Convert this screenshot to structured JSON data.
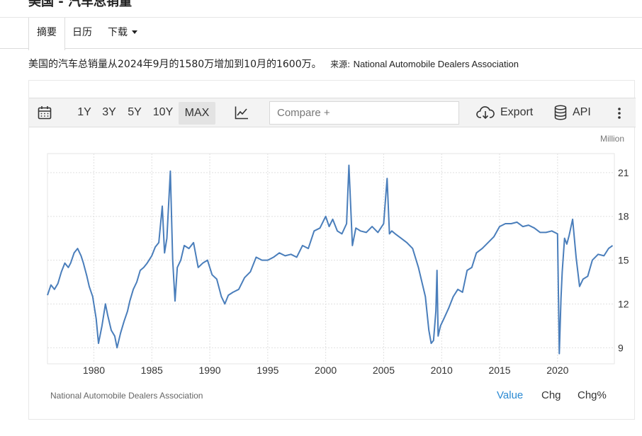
{
  "page": {
    "title": "美国 - 汽车总销量"
  },
  "tabs": {
    "summary": "摘要",
    "calendar": "日历",
    "download": "下载"
  },
  "summary": {
    "text": "美国的汽车总销量从2024年9月的1580万增加到10月的1600万。",
    "source_label": "来源:",
    "source_name": "National Automobile Dealers Association"
  },
  "toolbar": {
    "ranges": [
      "1Y",
      "3Y",
      "5Y",
      "10Y",
      "MAX"
    ],
    "active_range": "MAX",
    "compare_placeholder": "Compare +",
    "export_label": "Export",
    "api_label": "API"
  },
  "footer": {
    "source": "National Automobile Dealers Association",
    "views": [
      "Value",
      "Chg",
      "Chg%"
    ],
    "active_view": "Value"
  },
  "colors": {
    "line": "#4a7ebb",
    "active_view": "#2b8ad3"
  },
  "chart_data": {
    "type": "line",
    "unit": "Million",
    "x_ticks": [
      1980,
      1985,
      1990,
      1995,
      2000,
      2005,
      2010,
      2015,
      2020
    ],
    "y_ticks": [
      9,
      12,
      15,
      18,
      21
    ],
    "xlim": [
      1976,
      2024.9
    ],
    "ylim": [
      7.9,
      22.3
    ],
    "grid": true,
    "series": [
      {
        "x": [
          1976.0,
          1976.3,
          1976.6,
          1976.9,
          1977.2,
          1977.5,
          1977.8,
          1978.0,
          1978.3,
          1978.6,
          1978.9,
          1979.1,
          1979.4,
          1979.6,
          1979.9,
          1980.2,
          1980.4,
          1980.7,
          1981.0,
          1981.2,
          1981.5,
          1981.8,
          1982.0,
          1982.3,
          1982.6,
          1982.9,
          1983.1,
          1983.4,
          1983.7,
          1984.0,
          1984.3,
          1984.6,
          1985.0,
          1985.3,
          1985.6,
          1985.9,
          1986.1,
          1986.3,
          1986.6,
          1986.8,
          1987.0,
          1987.2,
          1987.5,
          1987.8,
          1988.2,
          1988.6,
          1989.0,
          1989.4,
          1989.8,
          1990.2,
          1990.6,
          1991.0,
          1991.3,
          1991.6,
          1992.0,
          1992.5,
          1993.0,
          1993.5,
          1994.0,
          1994.5,
          1995.0,
          1995.5,
          1996.0,
          1996.5,
          1997.0,
          1997.5,
          1998.0,
          1998.5,
          1999.0,
          1999.5,
          2000.0,
          2000.3,
          2000.6,
          2001.0,
          2001.4,
          2001.8,
          2002.0,
          2002.3,
          2002.6,
          2003.0,
          2003.5,
          2004.0,
          2004.5,
          2005.0,
          2005.3,
          2005.5,
          2005.7,
          2006.0,
          2006.5,
          2007.0,
          2007.5,
          2008.0,
          2008.3,
          2008.6,
          2008.9,
          2009.1,
          2009.3,
          2009.5,
          2009.6,
          2009.7,
          2009.9,
          2010.2,
          2010.6,
          2011.0,
          2011.4,
          2011.8,
          2012.2,
          2012.6,
          2013.0,
          2013.5,
          2014.0,
          2014.5,
          2015.0,
          2015.5,
          2016.0,
          2016.5,
          2017.0,
          2017.5,
          2018.0,
          2018.5,
          2019.0,
          2019.5,
          2020.0,
          2020.15,
          2020.3,
          2020.4,
          2020.6,
          2020.8,
          2021.0,
          2021.3,
          2021.6,
          2021.9,
          2022.2,
          2022.6,
          2023.0,
          2023.5,
          2024.0,
          2024.4,
          2024.75
        ],
        "values": [
          12.6,
          13.3,
          13.0,
          13.4,
          14.2,
          14.8,
          14.5,
          14.8,
          15.5,
          15.8,
          15.3,
          14.8,
          13.9,
          13.2,
          12.5,
          11.0,
          9.3,
          10.5,
          12.0,
          11.2,
          10.2,
          9.8,
          9.0,
          10.0,
          10.8,
          11.5,
          12.2,
          13.0,
          13.5,
          14.3,
          14.5,
          14.8,
          15.3,
          15.9,
          16.2,
          18.7,
          15.5,
          16.5,
          21.1,
          15.0,
          12.2,
          14.5,
          15.0,
          16.0,
          15.8,
          16.2,
          14.5,
          14.8,
          15.0,
          14.0,
          13.7,
          12.5,
          12.0,
          12.6,
          12.8,
          13.0,
          13.8,
          14.2,
          15.2,
          15.0,
          15.0,
          15.2,
          15.5,
          15.3,
          15.4,
          15.2,
          16.0,
          15.8,
          17.0,
          17.2,
          18.0,
          17.3,
          17.8,
          17.0,
          16.8,
          17.5,
          21.5,
          16.0,
          17.2,
          17.0,
          16.9,
          17.3,
          16.9,
          17.5,
          20.6,
          16.8,
          17.0,
          16.8,
          16.5,
          16.2,
          15.8,
          14.5,
          13.5,
          12.5,
          10.2,
          9.3,
          9.5,
          11.5,
          14.3,
          9.8,
          10.5,
          11.0,
          11.7,
          12.5,
          13.0,
          12.8,
          14.3,
          14.5,
          15.5,
          15.8,
          16.2,
          16.6,
          17.3,
          17.5,
          17.5,
          17.6,
          17.3,
          17.4,
          17.2,
          16.9,
          16.9,
          17.0,
          16.8,
          8.6,
          12.4,
          14.2,
          16.5,
          16.1,
          16.7,
          17.8,
          15.2,
          13.2,
          13.7,
          13.9,
          15.0,
          15.4,
          15.3,
          15.8,
          16.0
        ]
      }
    ]
  }
}
